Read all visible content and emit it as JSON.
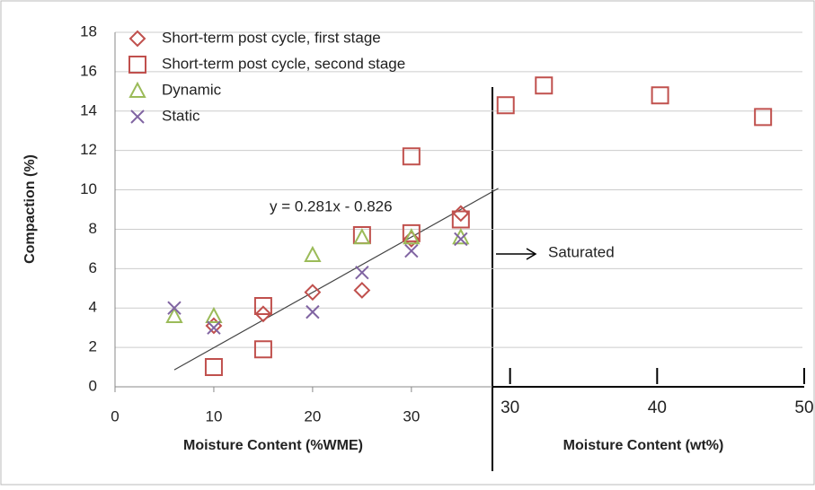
{
  "chart_data": {
    "type": "scatter",
    "y_label": "Compaction (%)",
    "x_label": "Moisture Content (%WME)",
    "x2_label": "Moisture Content (wt%)",
    "ylim": [
      0,
      18
    ],
    "yticks": [
      0,
      2,
      4,
      6,
      8,
      10,
      12,
      14,
      16,
      18
    ],
    "xlim": [
      0,
      38.2
    ],
    "xticks": [
      0,
      10,
      20,
      30
    ],
    "x2lim": [
      28.8,
      50
    ],
    "x2ticks": [
      30,
      40,
      50
    ],
    "grid": true,
    "legend": "upper left",
    "series": [
      {
        "name": "Short-term post cycle, first stage",
        "marker": "diamond",
        "color": "#c0504d",
        "x": [
          10,
          15,
          20,
          25,
          30,
          35
        ],
        "values": [
          3.1,
          3.7,
          4.8,
          4.9,
          7.5,
          8.8
        ]
      },
      {
        "name": "Short-term post cycle, second stage",
        "marker": "square",
        "color": "#c0504d",
        "x": [
          10,
          15,
          15,
          25,
          30,
          30,
          35
        ],
        "values": [
          1.0,
          1.9,
          4.1,
          7.7,
          11.7,
          7.8,
          8.5
        ]
      },
      {
        "name": "Dynamic",
        "marker": "triangle",
        "color": "#9bbb59",
        "x": [
          6,
          10,
          20,
          25,
          30,
          35
        ],
        "values": [
          3.6,
          3.6,
          6.7,
          7.6,
          7.6,
          7.6
        ]
      },
      {
        "name": "Static",
        "marker": "cross",
        "color": "#8064a2",
        "x": [
          6,
          10,
          20,
          25,
          30,
          35
        ],
        "values": [
          4.0,
          3.0,
          3.8,
          5.8,
          6.9,
          7.5
        ]
      },
      {
        "marker": "square",
        "color": "#c0504d",
        "axis": "x2",
        "x": [
          29.7,
          32.3,
          40.2,
          47.2
        ],
        "values": [
          14.3,
          15.3,
          14.8,
          13.7
        ]
      }
    ],
    "trendline": {
      "label": "y = 0.281x - 0.826",
      "slope": 0.281,
      "intercept": -0.826,
      "x_range": [
        6,
        38.8
      ]
    },
    "annotation": "Saturated"
  }
}
